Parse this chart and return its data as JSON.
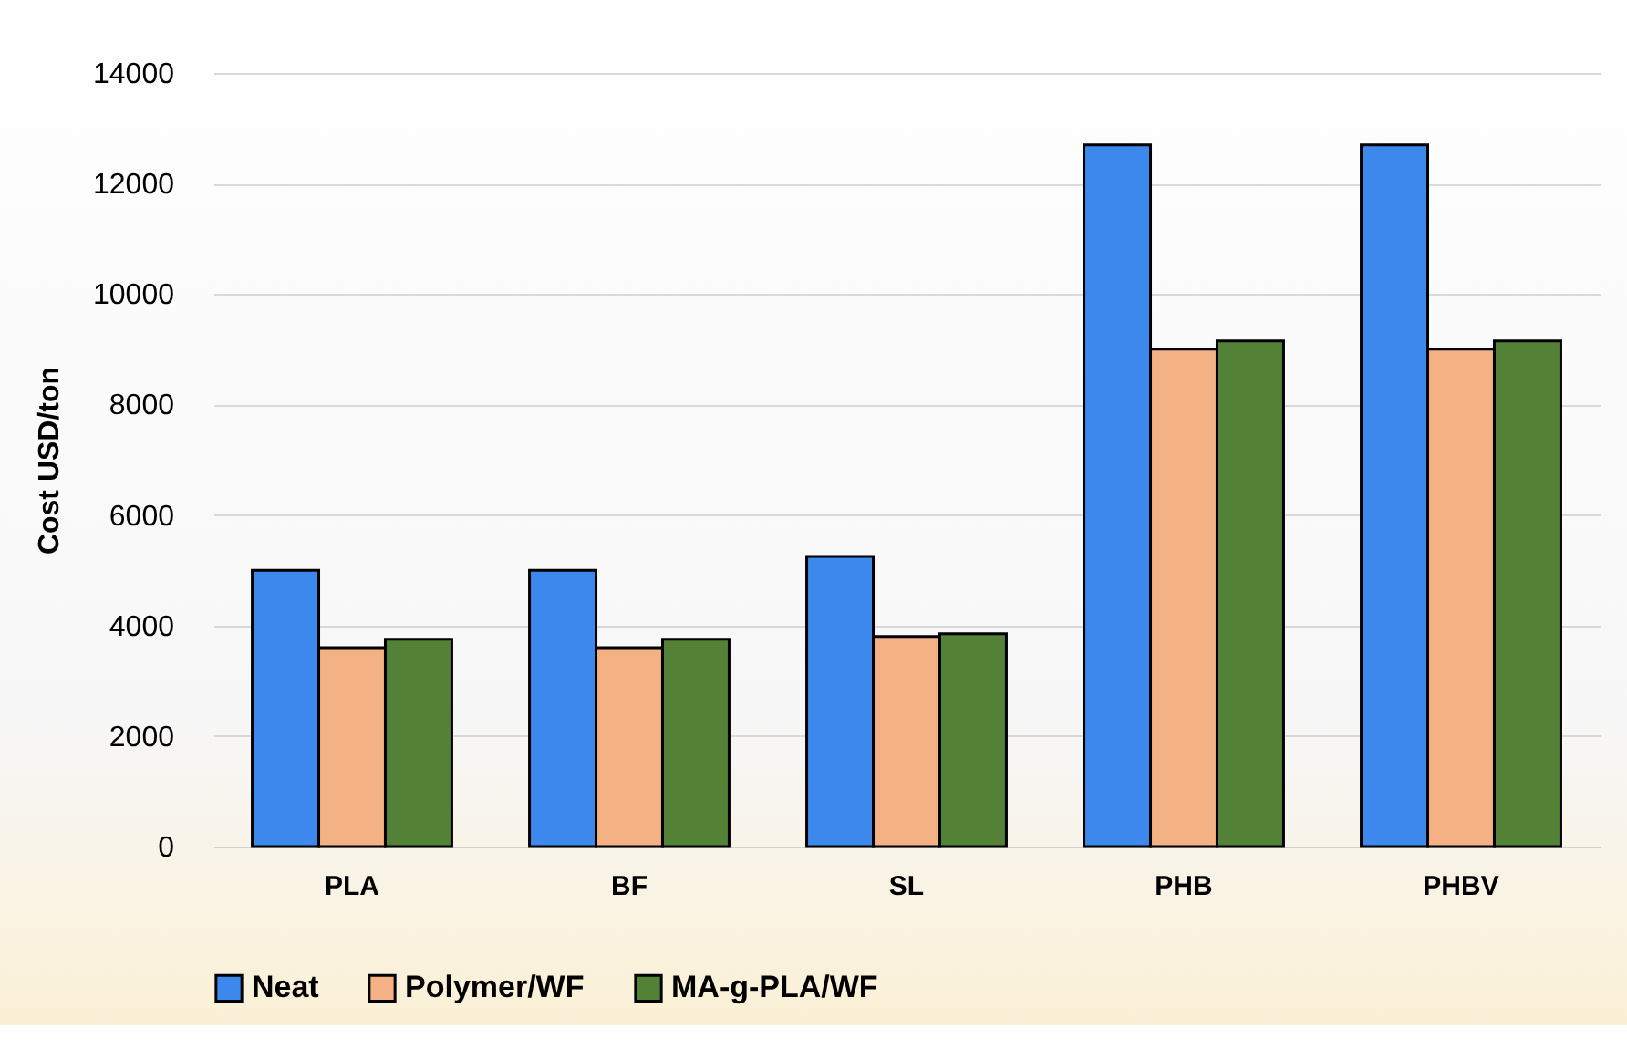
{
  "chart_data": {
    "type": "bar",
    "ylabel": "Cost USD/ton",
    "categories": [
      "PLA",
      "BF",
      "SL",
      "PHB",
      "PHBV"
    ],
    "series": [
      {
        "name": "Neat",
        "color": "#3d88ec",
        "values": [
          5000,
          5000,
          5250,
          12700,
          12700
        ]
      },
      {
        "name": "Polymer/WF",
        "color": "#f4b183",
        "values": [
          3600,
          3600,
          3800,
          9000,
          9000
        ]
      },
      {
        "name": "MA-g-PLA/WF",
        "color": "#538135",
        "values": [
          3750,
          3750,
          3850,
          9150,
          9150
        ]
      }
    ],
    "ylim": [
      0,
      14000
    ],
    "yticks": [
      0,
      2000,
      4000,
      6000,
      8000,
      10000,
      12000,
      14000
    ],
    "grid": "y",
    "legend": "bottom"
  }
}
